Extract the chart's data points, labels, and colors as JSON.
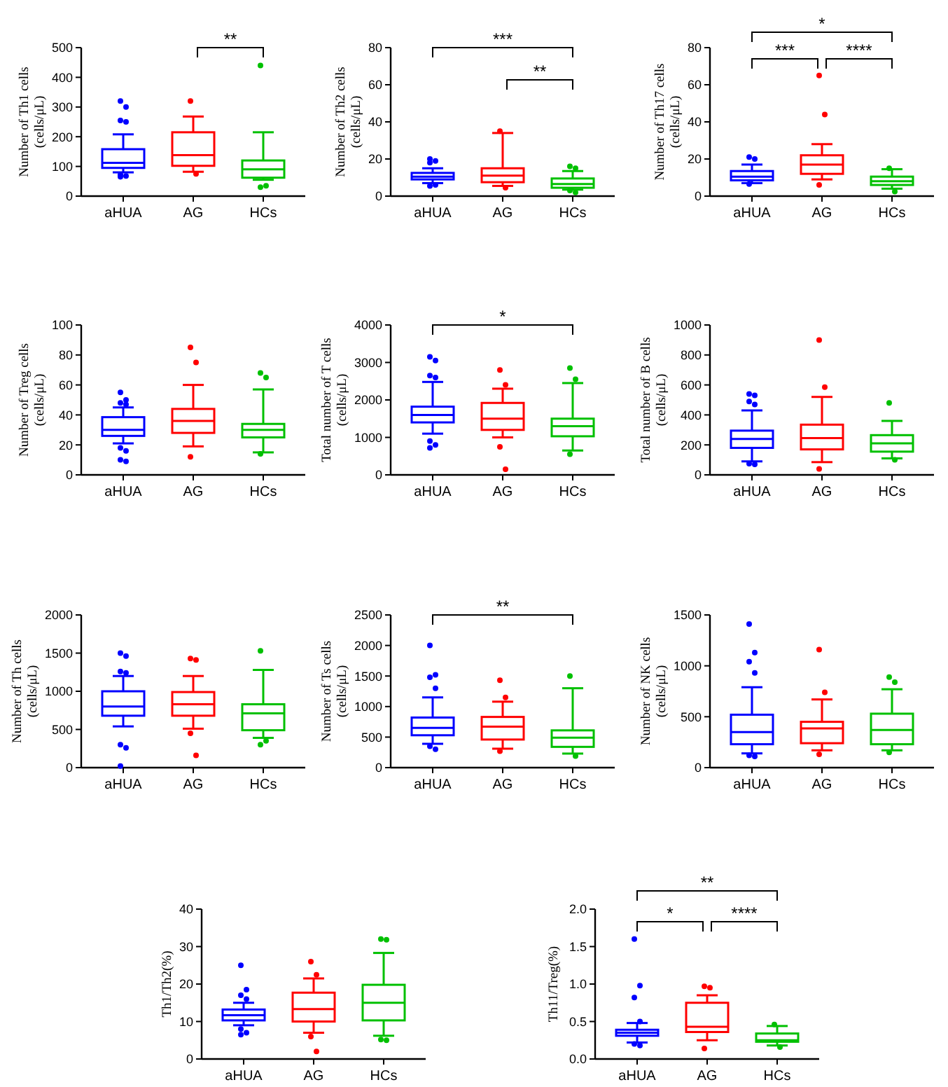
{
  "chart_data": [
    {
      "type": "box",
      "ylabel": "Number of Th1 cells\n(cells/μL)",
      "categories": [
        "aHUA",
        "AG",
        "HCs"
      ],
      "colors": [
        "#0000ff",
        "#ff0000",
        "#00c000"
      ],
      "ylim": [
        0,
        500
      ],
      "yticks": [
        0,
        100,
        200,
        300,
        400,
        500
      ],
      "annotations": [
        "**"
      ],
      "boxes": [
        {
          "low": 80,
          "q1": 95,
          "median": 112,
          "q3": 158,
          "high": 208,
          "outliers": [
            320,
            300,
            255,
            250,
            72,
            68,
            65
          ]
        },
        {
          "low": 82,
          "q1": 102,
          "median": 138,
          "q3": 215,
          "high": 268,
          "outliers": [
            320,
            75
          ]
        },
        {
          "low": 55,
          "q1": 62,
          "median": 90,
          "q3": 120,
          "high": 215,
          "outliers": [
            440,
            35,
            30
          ]
        }
      ]
    },
    {
      "type": "box",
      "ylabel": "Number of Th2 cells\n(cells/μL)",
      "categories": [
        "aHUA",
        "AG",
        "HCs"
      ],
      "colors": [
        "#0000ff",
        "#ff0000",
        "#00c000"
      ],
      "ylim": [
        0,
        80
      ],
      "yticks": [
        0,
        20,
        40,
        60,
        80
      ],
      "annotations": [
        "***",
        "**"
      ],
      "boxes": [
        {
          "low": 7,
          "q1": 9,
          "median": 10.5,
          "q3": 12.5,
          "high": 15,
          "outliers": [
            20,
            19,
            18,
            6,
            5.5
          ]
        },
        {
          "low": 5.5,
          "q1": 7.5,
          "median": 11,
          "q3": 15,
          "high": 34,
          "outliers": [
            35,
            4.5
          ]
        },
        {
          "low": 3.5,
          "q1": 4.5,
          "median": 6.5,
          "q3": 9.5,
          "high": 13.5,
          "outliers": [
            16,
            15,
            3,
            2
          ]
        }
      ]
    },
    {
      "type": "box",
      "ylabel": "Number of Th17 cells\n(cells/μL)",
      "categories": [
        "aHUA",
        "AG",
        "HCs"
      ],
      "colors": [
        "#0000ff",
        "#ff0000",
        "#00c000"
      ],
      "ylim": [
        0,
        80
      ],
      "yticks": [
        0,
        20,
        40,
        60,
        80
      ],
      "annotations": [
        "*",
        "***",
        "****"
      ],
      "boxes": [
        {
          "low": 7,
          "q1": 8.5,
          "median": 10.5,
          "q3": 13.5,
          "high": 17,
          "outliers": [
            21,
            20,
            6.5
          ]
        },
        {
          "low": 9,
          "q1": 12,
          "median": 17,
          "q3": 22,
          "high": 28,
          "outliers": [
            65,
            44,
            6
          ]
        },
        {
          "low": 4,
          "q1": 6,
          "median": 8,
          "q3": 10.5,
          "high": 14.5,
          "outliers": [
            15,
            2.5
          ]
        }
      ]
    },
    {
      "type": "box",
      "ylabel": "Number of Treg cells\n(cells/μL)",
      "categories": [
        "aHUA",
        "AG",
        "HCs"
      ],
      "colors": [
        "#0000ff",
        "#ff0000",
        "#00c000"
      ],
      "ylim": [
        0,
        100
      ],
      "yticks": [
        0,
        20,
        40,
        60,
        80,
        100
      ],
      "boxes": [
        {
          "low": 21,
          "q1": 26,
          "median": 30,
          "q3": 38.5,
          "high": 45,
          "outliers": [
            55,
            50,
            48,
            47,
            18,
            16,
            10,
            9
          ]
        },
        {
          "low": 19,
          "q1": 28,
          "median": 36,
          "q3": 44,
          "high": 60,
          "outliers": [
            85,
            75,
            12
          ]
        },
        {
          "low": 15,
          "q1": 25,
          "median": 30,
          "q3": 34,
          "high": 57,
          "outliers": [
            68,
            65,
            14
          ]
        }
      ]
    },
    {
      "type": "box",
      "ylabel": "Total number of T cells\n(cells/μL)",
      "categories": [
        "aHUA",
        "AG",
        "HCs"
      ],
      "colors": [
        "#0000ff",
        "#ff0000",
        "#00c000"
      ],
      "ylim": [
        0,
        4000
      ],
      "yticks": [
        0,
        1000,
        2000,
        3000,
        4000
      ],
      "annotations": [
        "*"
      ],
      "boxes": [
        {
          "low": 1100,
          "q1": 1400,
          "median": 1600,
          "q3": 1820,
          "high": 2480,
          "outliers": [
            3150,
            3050,
            2650,
            2600,
            900,
            800,
            720
          ]
        },
        {
          "low": 1000,
          "q1": 1200,
          "median": 1500,
          "q3": 1920,
          "high": 2300,
          "outliers": [
            2800,
            2400,
            750,
            150
          ]
        },
        {
          "low": 650,
          "q1": 1030,
          "median": 1300,
          "q3": 1500,
          "high": 2450,
          "outliers": [
            2850,
            2550,
            550
          ]
        }
      ]
    },
    {
      "type": "box",
      "ylabel": "Total number of B cells\n(cells/μL)",
      "categories": [
        "aHUA",
        "AG",
        "HCs"
      ],
      "colors": [
        "#0000ff",
        "#ff0000",
        "#00c000"
      ],
      "ylim": [
        0,
        1000
      ],
      "yticks": [
        0,
        200,
        400,
        600,
        800,
        1000
      ],
      "boxes": [
        {
          "low": 90,
          "q1": 180,
          "median": 240,
          "q3": 295,
          "high": 430,
          "outliers": [
            540,
            530,
            490,
            470,
            75,
            70
          ]
        },
        {
          "low": 85,
          "q1": 170,
          "median": 245,
          "q3": 335,
          "high": 520,
          "outliers": [
            900,
            585,
            40
          ]
        },
        {
          "low": 110,
          "q1": 155,
          "median": 210,
          "q3": 265,
          "high": 360,
          "outliers": [
            480,
            100
          ]
        }
      ]
    },
    {
      "type": "box",
      "ylabel": "Number of Th cells\n(cells/μL)",
      "categories": [
        "aHUA",
        "AG",
        "HCs"
      ],
      "colors": [
        "#0000ff",
        "#ff0000",
        "#00c000"
      ],
      "ylim": [
        0,
        2000
      ],
      "yticks": [
        0,
        500,
        1000,
        1500,
        2000
      ],
      "boxes": [
        {
          "low": 540,
          "q1": 680,
          "median": 800,
          "q3": 1000,
          "high": 1200,
          "outliers": [
            1500,
            1460,
            1260,
            1240,
            300,
            260,
            20
          ]
        },
        {
          "low": 510,
          "q1": 680,
          "median": 830,
          "q3": 990,
          "high": 1200,
          "outliers": [
            1430,
            1410,
            450,
            160
          ]
        },
        {
          "low": 390,
          "q1": 490,
          "median": 710,
          "q3": 830,
          "high": 1280,
          "outliers": [
            1530,
            350,
            300
          ]
        }
      ]
    },
    {
      "type": "box",
      "ylabel": "Number of Ts cells\n(cells/μL)",
      "categories": [
        "aHUA",
        "AG",
        "HCs"
      ],
      "colors": [
        "#0000ff",
        "#ff0000",
        "#00c000"
      ],
      "ylim": [
        0,
        2500
      ],
      "yticks": [
        0,
        500,
        1000,
        1500,
        2000,
        2500
      ],
      "annotations": [
        "**"
      ],
      "boxes": [
        {
          "low": 390,
          "q1": 530,
          "median": 650,
          "q3": 820,
          "high": 1150,
          "outliers": [
            2000,
            1520,
            1480,
            1300,
            350,
            300
          ]
        },
        {
          "low": 310,
          "q1": 460,
          "median": 670,
          "q3": 830,
          "high": 1080,
          "outliers": [
            1430,
            1150,
            270
          ]
        },
        {
          "low": 230,
          "q1": 340,
          "median": 490,
          "q3": 610,
          "high": 1300,
          "outliers": [
            1500,
            190
          ]
        }
      ]
    },
    {
      "type": "box",
      "ylabel": "Number of NK cells\n(cells/μL)",
      "categories": [
        "aHUA",
        "AG",
        "HCs"
      ],
      "colors": [
        "#0000ff",
        "#ff0000",
        "#00c000"
      ],
      "ylim": [
        0,
        1500
      ],
      "yticks": [
        0,
        500,
        1000,
        1500
      ],
      "boxes": [
        {
          "low": 140,
          "q1": 230,
          "median": 350,
          "q3": 520,
          "high": 790,
          "outliers": [
            1410,
            1130,
            1040,
            930,
            120,
            110
          ]
        },
        {
          "low": 170,
          "q1": 240,
          "median": 385,
          "q3": 450,
          "high": 670,
          "outliers": [
            1160,
            740,
            130
          ]
        },
        {
          "low": 170,
          "q1": 230,
          "median": 370,
          "q3": 530,
          "high": 770,
          "outliers": [
            890,
            840,
            150
          ]
        }
      ]
    },
    {
      "type": "box",
      "ylabel": "Th1/Th2(%)",
      "categories": [
        "aHUA",
        "AG",
        "HCs"
      ],
      "colors": [
        "#0000ff",
        "#ff0000",
        "#00c000"
      ],
      "ylim": [
        0,
        40
      ],
      "yticks": [
        0,
        10,
        20,
        30,
        40
      ],
      "boxes": [
        {
          "low": 9,
          "q1": 10.3,
          "median": 11.7,
          "q3": 13.2,
          "high": 15,
          "outliers": [
            25,
            18.5,
            17,
            16,
            8,
            7,
            6.5
          ]
        },
        {
          "low": 7,
          "q1": 10,
          "median": 13.3,
          "q3": 17.7,
          "high": 21.5,
          "outliers": [
            26,
            22.5,
            6,
            2
          ]
        },
        {
          "low": 6.2,
          "q1": 10.3,
          "median": 15,
          "q3": 19.8,
          "high": 28.3,
          "outliers": [
            32,
            31.8,
            5.2,
            5
          ]
        }
      ]
    },
    {
      "type": "box",
      "ylabel": "Th11/Treg(%)",
      "categories": [
        "aHUA",
        "AG",
        "HCs"
      ],
      "colors": [
        "#0000ff",
        "#ff0000",
        "#00c000"
      ],
      "ylim": [
        0,
        2
      ],
      "yticks": [
        {
          "value": 0,
          "label": "0.0"
        },
        {
          "value": 0.5,
          "label": "0.5"
        },
        {
          "value": 1,
          "label": "1.0"
        },
        {
          "value": 1.5,
          "label": "1.5"
        },
        {
          "value": 2,
          "label": "2.0"
        }
      ],
      "annotations": [
        "**",
        "*",
        "****"
      ],
      "boxes": [
        {
          "low": 0.22,
          "q1": 0.31,
          "median": 0.35,
          "q3": 0.39,
          "high": 0.48,
          "outliers": [
            1.6,
            0.98,
            0.82,
            0.5,
            0.2,
            0.18
          ]
        },
        {
          "low": 0.25,
          "q1": 0.36,
          "median": 0.43,
          "q3": 0.75,
          "high": 0.85,
          "outliers": [
            0.97,
            0.95,
            0.14
          ]
        },
        {
          "low": 0.18,
          "q1": 0.23,
          "median": 0.25,
          "q3": 0.34,
          "high": 0.44,
          "outliers": [
            0.46,
            0.16
          ]
        }
      ]
    }
  ]
}
